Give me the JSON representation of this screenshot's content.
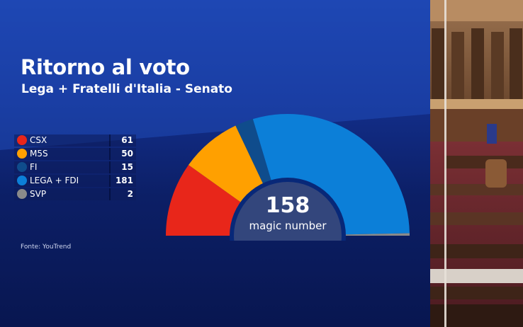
{
  "title": "Ritorno al voto",
  "subtitle": "Lega + Fratelli d'Italia - Senato",
  "source": "Fonte: YouTrend",
  "colors": {
    "CSX": "#e8261a",
    "M5S": "#ffa000",
    "FI": "#0f4c8c",
    "LEGA + FDI": "#0c7fd8",
    "SVP": "#8a8a8a"
  },
  "chart_data": {
    "type": "pie",
    "layout": "semicircle-parliament",
    "title": "Ritorno al voto",
    "subtitle": "Lega + Fratelli d'Italia - Senato",
    "categories": [
      "CSX",
      "M5S",
      "FI",
      "LEGA + FDI",
      "SVP"
    ],
    "values": [
      61,
      50,
      15,
      181,
      2
    ],
    "center": {
      "value": "158",
      "label": "magic number"
    },
    "legend": "left"
  }
}
